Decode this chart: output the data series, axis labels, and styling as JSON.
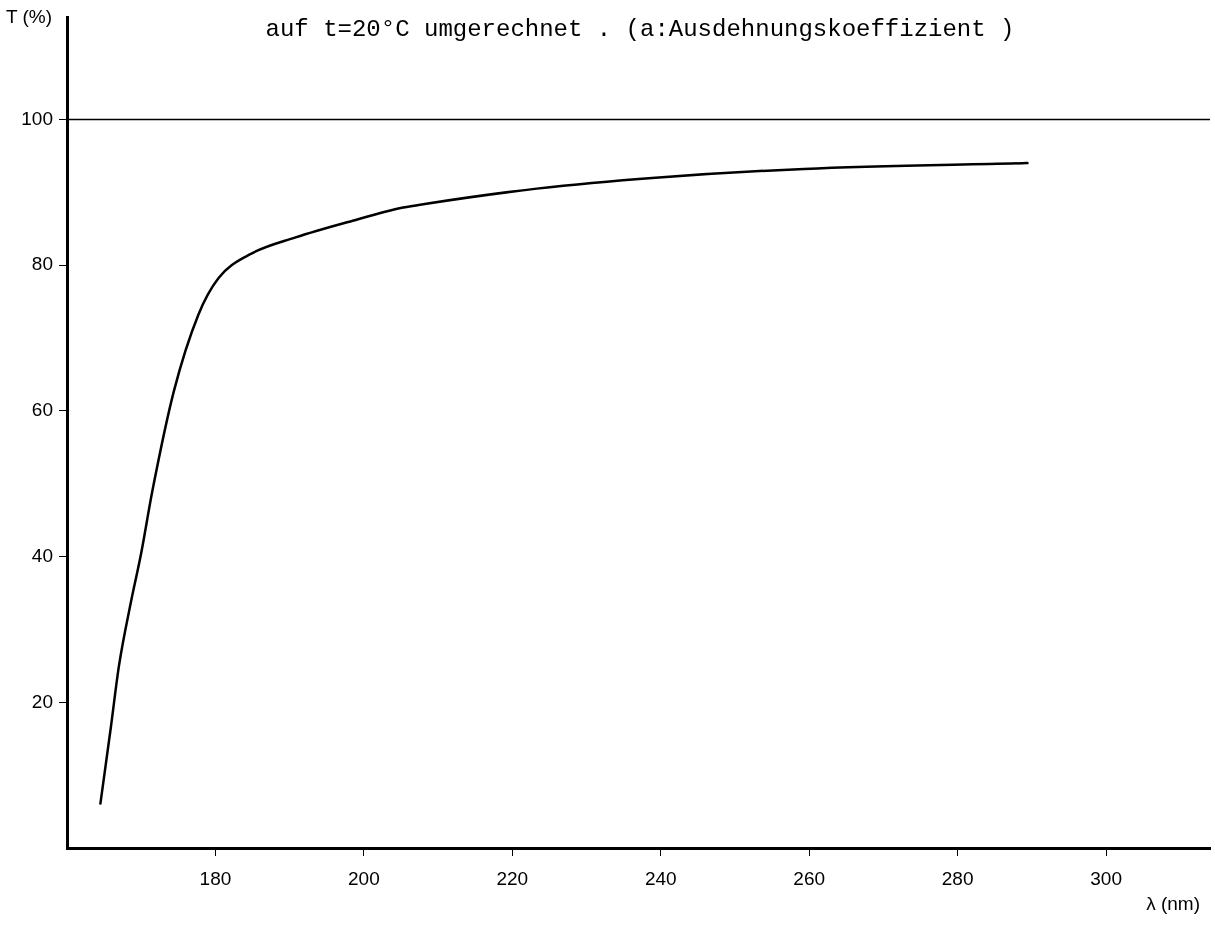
{
  "chart_data": {
    "type": "line",
    "title": "auf t=20°C umgerechnet . (a:Ausdehnungskoeffizient )",
    "xlabel": "λ (nm)",
    "ylabel": "T (%)",
    "x": [
      164.5,
      165.9,
      167,
      168.6,
      170,
      171.5,
      174.4,
      177.7,
      180.4,
      184.5,
      190.8,
      198.5,
      205.3,
      208.2,
      223.3,
      239.3,
      259.3,
      289.4
    ],
    "series": [
      {
        "color": "#000000",
        "values": [
          6.1,
          16.5,
          25,
          33.7,
          40.5,
          49,
          62.7,
          73.2,
          78.2,
          81.4,
          83.8,
          86.1,
          87.9,
          88.4,
          90.5,
          92,
          93.2,
          94
        ]
      }
    ],
    "xlim": [
      160,
      314
    ],
    "xticks": [
      180,
      200,
      220,
      240,
      260,
      280,
      300
    ],
    "ylim": [
      0,
      114
    ],
    "yticks": [
      20,
      40,
      60,
      80,
      100
    ],
    "ref_lines": [
      {
        "axis": "y",
        "value": 100,
        "color": "#000000"
      }
    ],
    "grid": false,
    "legend": false,
    "marker": "none",
    "line_style": "solid"
  }
}
